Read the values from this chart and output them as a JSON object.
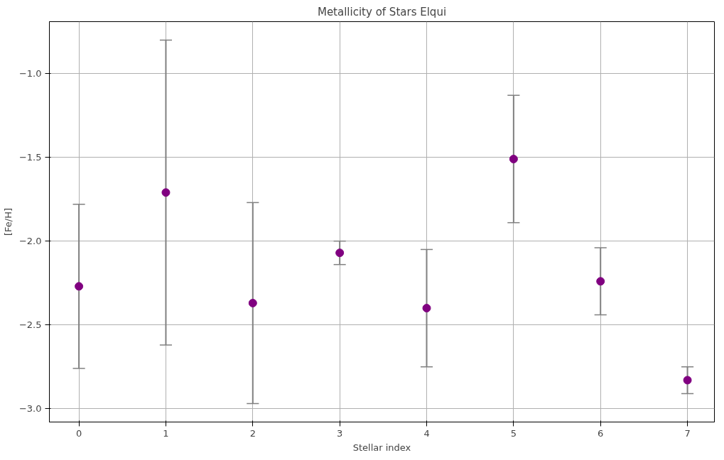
{
  "chart_data": {
    "type": "scatter",
    "title": "Metallicity of Stars Elqui",
    "xlabel": "Stellar index",
    "ylabel": "[Fe/H]",
    "x": [
      0,
      1,
      2,
      3,
      4,
      5,
      6,
      7
    ],
    "values": [
      -2.27,
      -1.71,
      -2.37,
      -2.07,
      -2.4,
      -1.51,
      -2.24,
      -2.83
    ],
    "errors": [
      0.49,
      0.91,
      0.6,
      0.07,
      0.35,
      0.38,
      0.2,
      0.08
    ],
    "color": "#800080",
    "marker": "circle",
    "grid": true,
    "xlim": [
      -0.34,
      7.31
    ],
    "ylim": [
      -3.08,
      -0.69
    ],
    "xticks": [
      0,
      1,
      2,
      3,
      4,
      5,
      6,
      7
    ],
    "yticks": [
      {
        "value": -3.0,
        "label": "−3.0"
      },
      {
        "value": -2.5,
        "label": "−2.5"
      },
      {
        "value": -2.0,
        "label": "−2.0"
      },
      {
        "value": -1.5,
        "label": "−1.5"
      },
      {
        "value": -1.0,
        "label": "−1.0"
      }
    ]
  }
}
